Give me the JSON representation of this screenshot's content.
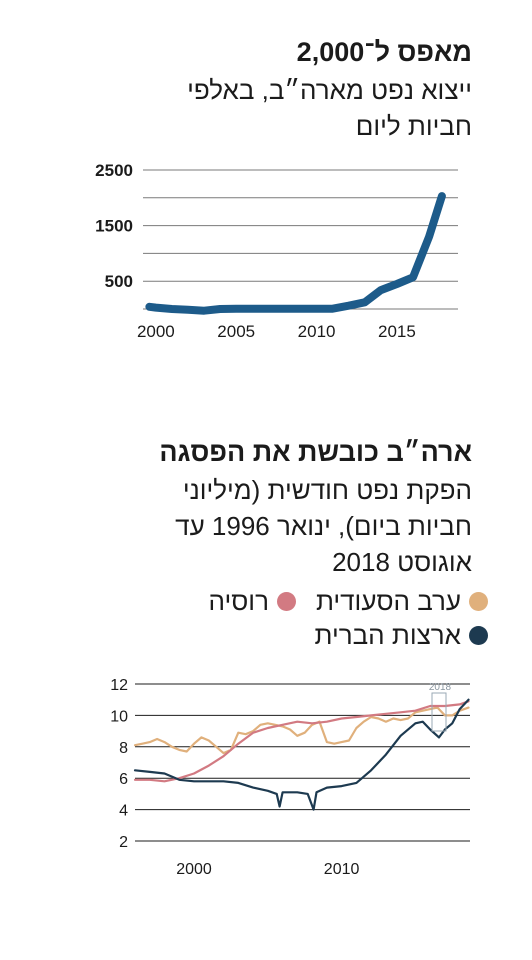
{
  "chart1": {
    "title": "מאפס ל־2,000",
    "subtitle_line1": "ייצוא נפט מארה״ב, באלפי",
    "subtitle_line2": "חביות ליום",
    "color": "#1d5b8a",
    "chart_data": {
      "type": "line",
      "ylim": [
        0,
        2500
      ],
      "xlim": [
        1999.2,
        2018.8
      ],
      "y_ticks": [
        "2500",
        "1500",
        "500"
      ],
      "y_tick_values": [
        2500,
        1500,
        500
      ],
      "gridlines": [
        2500,
        2000,
        1500,
        1000,
        500
      ],
      "x_ticks": [
        "2000",
        "2005",
        "2010",
        "2015"
      ],
      "x_tick_values": [
        2000,
        2005,
        2010,
        2015
      ],
      "series": [
        {
          "x": [
            1999.6,
            2000,
            2001,
            2002,
            2003,
            2004,
            2005,
            2006,
            2007,
            2008,
            2009,
            2010,
            2011,
            2012,
            2013,
            2014,
            2015,
            2016,
            2017,
            2017.8
          ],
          "values": [
            40,
            25,
            0,
            -15,
            -30,
            0,
            5,
            5,
            5,
            5,
            5,
            5,
            5,
            60,
            120,
            340,
            450,
            570,
            1300,
            2030
          ]
        }
      ]
    }
  },
  "chart2": {
    "title": "ארה״ב כובשת את הפסגה",
    "subtitle_line1": "הפקת נפט חודשית (מיליוני",
    "subtitle_line2": "חביות ביום), ינואר 1996 עד",
    "subtitle_line3": "אוגוסט 2018",
    "legend": [
      {
        "label": "ערב הסעודית",
        "color": "#e0b07c"
      },
      {
        "label": "רוסיה",
        "color": "#d27a82"
      },
      {
        "label": "ארצות הברית",
        "color": "#1d3a50"
      }
    ],
    "annotation": "2018",
    "chart_data": {
      "type": "line",
      "ylim": [
        2,
        12
      ],
      "xlim": [
        1996,
        2018.7
      ],
      "y_ticks": [
        "12",
        "10",
        "8",
        "6",
        "4",
        "2"
      ],
      "y_tick_values": [
        12,
        10,
        8,
        6,
        4,
        2
      ],
      "x_ticks": [
        "2000",
        "2010"
      ],
      "x_tick_values": [
        2000,
        2010
      ],
      "series": [
        {
          "name": "ערב הסעודית",
          "color": "#e0b07c",
          "x": [
            1996,
            1996.5,
            1997,
            1997.5,
            1998,
            1998.5,
            1999,
            1999.5,
            2000,
            2000.5,
            2001,
            2001.5,
            2002,
            2002.5,
            2003,
            2003.5,
            2004,
            2004.5,
            2005,
            2005.5,
            2006,
            2006.5,
            2007,
            2007.5,
            2008,
            2008.5,
            2009,
            2009.5,
            2010,
            2010.5,
            2011,
            2011.5,
            2012,
            2012.5,
            2013,
            2013.5,
            2014,
            2014.5,
            2015,
            2015.5,
            2016,
            2016.5,
            2017,
            2017.5,
            2018,
            2018.6
          ],
          "values": [
            8.1,
            8.2,
            8.3,
            8.5,
            8.3,
            8.0,
            7.8,
            7.7,
            8.2,
            8.6,
            8.4,
            8.0,
            7.6,
            7.8,
            8.9,
            8.8,
            9.0,
            9.4,
            9.5,
            9.4,
            9.3,
            9.1,
            8.7,
            8.9,
            9.4,
            9.6,
            8.3,
            8.2,
            8.3,
            8.4,
            9.2,
            9.6,
            9.9,
            9.8,
            9.6,
            9.8,
            9.7,
            9.8,
            10.2,
            10.3,
            10.4,
            10.5,
            10.0,
            10.0,
            10.3,
            10.5
          ]
        },
        {
          "name": "רוסיה",
          "color": "#d27a82",
          "x": [
            1996,
            1997,
            1998,
            1999,
            2000,
            2001,
            2002,
            2003,
            2004,
            2005,
            2006,
            2007,
            2008,
            2009,
            2010,
            2011,
            2012,
            2013,
            2014,
            2015,
            2016,
            2017,
            2018,
            2018.6
          ],
          "values": [
            5.9,
            5.9,
            5.8,
            6.0,
            6.3,
            6.8,
            7.4,
            8.2,
            8.9,
            9.2,
            9.4,
            9.6,
            9.5,
            9.6,
            9.8,
            9.9,
            10.0,
            10.1,
            10.2,
            10.3,
            10.6,
            10.6,
            10.7,
            10.9
          ]
        },
        {
          "name": "ארצות הברית",
          "color": "#1d3a50",
          "x": [
            1996,
            1997,
            1998,
            1999,
            2000,
            2001,
            2002,
            2003,
            2004,
            2005,
            2005.6,
            2005.8,
            2006,
            2007,
            2007.7,
            2008.1,
            2008.3,
            2009,
            2010,
            2011,
            2012,
            2013,
            2014,
            2015,
            2015.5,
            2016,
            2016.6,
            2017,
            2017.5,
            2018,
            2018.6
          ],
          "values": [
            6.5,
            6.4,
            6.3,
            5.9,
            5.8,
            5.8,
            5.8,
            5.7,
            5.4,
            5.2,
            5.0,
            4.2,
            5.1,
            5.1,
            5.0,
            4.0,
            5.1,
            5.4,
            5.5,
            5.7,
            6.5,
            7.5,
            8.7,
            9.5,
            9.6,
            9.1,
            8.6,
            9.1,
            9.5,
            10.4,
            11.0
          ]
        }
      ]
    }
  }
}
